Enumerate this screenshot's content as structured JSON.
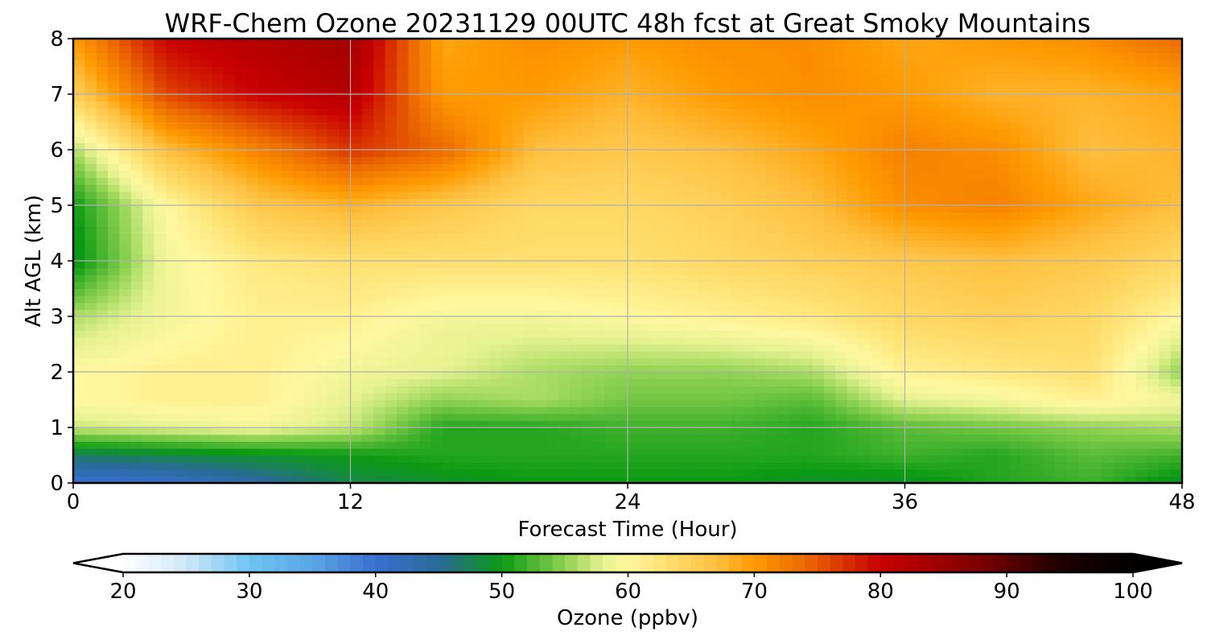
{
  "chart_data": {
    "type": "heatmap",
    "title": "WRF-Chem Ozone  20231129 00UTC 48h fcst at Great Smoky Mountains",
    "xlabel": "Forecast Time (Hour)",
    "ylabel": "Alt AGL (km)",
    "xlim": [
      0,
      48
    ],
    "ylim": [
      0,
      8
    ],
    "x_ticks": [
      "0",
      "12",
      "24",
      "36",
      "48"
    ],
    "y_ticks": [
      "0",
      "1",
      "2",
      "3",
      "4",
      "5",
      "6",
      "7",
      "8"
    ],
    "grid": true,
    "x": [
      0,
      4,
      8,
      12,
      16,
      20,
      24,
      28,
      32,
      36,
      40,
      44,
      48
    ],
    "y": [
      0,
      0.5,
      1,
      1.5,
      2,
      3,
      4,
      5,
      6,
      7,
      8
    ],
    "z": [
      [
        40,
        41,
        44,
        48,
        49,
        50,
        50,
        50,
        49,
        49,
        51,
        52,
        49
      ],
      [
        47,
        48,
        49,
        50,
        51,
        51,
        51,
        51,
        51,
        52,
        51,
        53,
        52
      ],
      [
        57,
        58,
        59,
        57,
        51,
        51,
        52,
        52,
        51,
        53,
        54,
        55,
        56
      ],
      [
        60,
        61,
        61,
        58,
        55,
        56,
        54,
        54,
        53,
        58,
        59,
        61,
        59
      ],
      [
        60,
        61,
        61,
        59,
        58,
        56,
        55,
        55,
        56,
        61,
        62,
        63,
        55
      ],
      [
        56,
        59,
        61,
        61,
        59,
        59,
        60,
        61,
        62,
        64,
        65,
        64,
        60
      ],
      [
        49,
        59,
        62,
        63,
        63,
        63,
        63,
        64,
        65,
        66,
        67,
        66,
        64
      ],
      [
        50,
        60,
        66,
        68,
        66,
        64,
        64,
        65,
        67,
        71,
        72,
        69,
        67
      ],
      [
        56,
        67,
        72,
        77,
        74,
        67,
        66,
        67,
        69,
        72,
        71,
        67,
        68
      ],
      [
        65,
        76,
        80,
        82,
        70,
        70,
        68,
        70,
        71,
        70,
        68,
        68,
        69
      ],
      [
        70,
        80,
        82,
        84,
        69,
        71,
        70,
        71,
        71,
        69,
        70,
        71,
        74
      ]
    ],
    "colorbar": {
      "label": "Ozone  (ppbv)",
      "min": 20,
      "max": 100,
      "ticks": [
        "20",
        "30",
        "40",
        "50",
        "60",
        "70",
        "80",
        "90",
        "100"
      ],
      "extend": "both"
    },
    "colormap": [
      [
        20,
        "#ffffff"
      ],
      [
        25,
        "#cfe8f8"
      ],
      [
        30,
        "#6ec4f2"
      ],
      [
        35,
        "#5aa6e6"
      ],
      [
        40,
        "#3a6fd0"
      ],
      [
        45,
        "#2a6a9a"
      ],
      [
        50,
        "#0a9a12"
      ],
      [
        55,
        "#8fd252"
      ],
      [
        58,
        "#e6f290"
      ],
      [
        60,
        "#fff8a0"
      ],
      [
        63,
        "#ffe070"
      ],
      [
        67,
        "#ffc040"
      ],
      [
        70,
        "#ff9a00"
      ],
      [
        74,
        "#ec6a00"
      ],
      [
        80,
        "#c80000"
      ],
      [
        88,
        "#7a0000"
      ],
      [
        94,
        "#200000"
      ],
      [
        100,
        "#000000"
      ]
    ]
  }
}
